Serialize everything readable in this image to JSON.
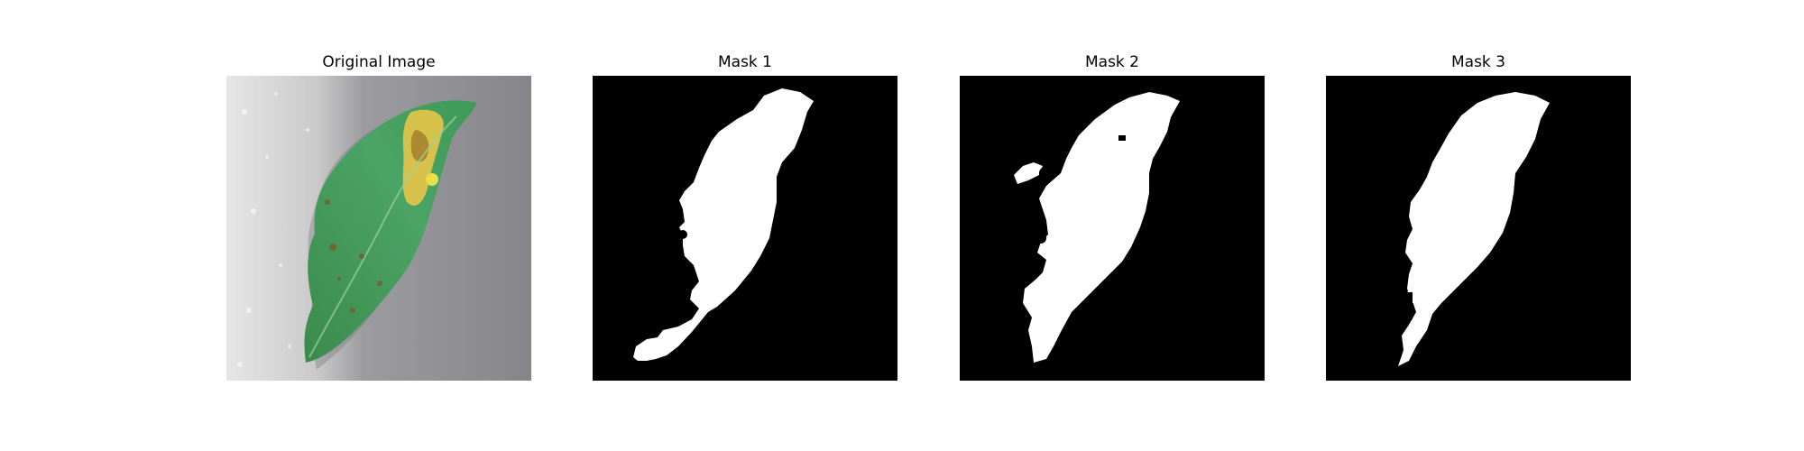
{
  "figure": {
    "panels": [
      {
        "title": "Original Image",
        "kind": "photo",
        "alt": "Green leaf with yellow spotted lesion on a grey background"
      },
      {
        "title": "Mask 1",
        "kind": "mask"
      },
      {
        "title": "Mask 2",
        "kind": "mask"
      },
      {
        "title": "Mask 3",
        "kind": "mask"
      }
    ],
    "colors": {
      "mask_background": "#000000",
      "mask_foreground": "#ffffff",
      "leaf": "#3f9a5a",
      "photo_background": "#8c8c90"
    }
  }
}
